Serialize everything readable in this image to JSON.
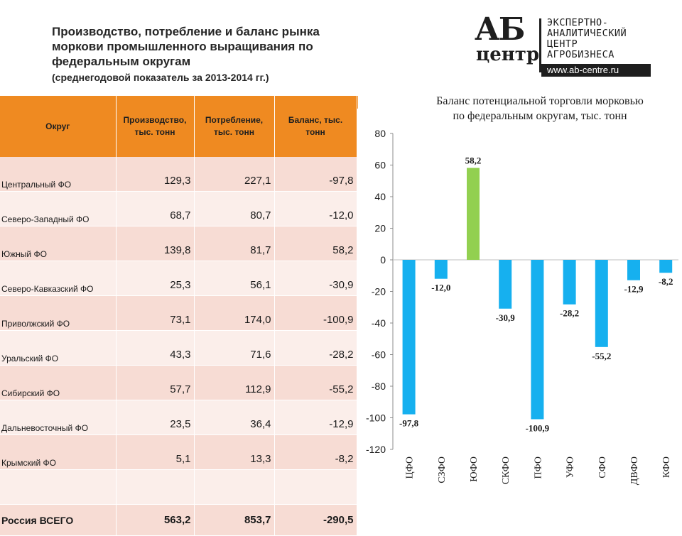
{
  "header": {
    "title": "Производство, потребление и баланс рынка моркови промышленного выращивания по федеральным округам",
    "subtitle": "(среднегодовой показатель за 2013-2014 гг.)"
  },
  "logo": {
    "mark_top": "АБ",
    "mark_bottom": "центр",
    "line1": "ЭКСПЕРТНО-",
    "line2": "АНАЛИТИЧЕСКИЙ",
    "line3": "ЦЕНТР",
    "line4": "АГРОБИЗНЕСА",
    "url": "www.ab-centre.ru"
  },
  "table": {
    "headers": [
      "Округ",
      "Производство, тыс. тонн",
      "Потребление, тыс. тонн",
      "Баланс, тыс. тонн"
    ],
    "rows": [
      {
        "name": "Центральный ФО",
        "production": "129,3",
        "consumption": "227,1",
        "balance": "-97,8"
      },
      {
        "name": "Северо-Западный ФО",
        "production": "68,7",
        "consumption": "80,7",
        "balance": "-12,0"
      },
      {
        "name": "Южный ФО",
        "production": "139,8",
        "consumption": "81,7",
        "balance": "58,2"
      },
      {
        "name": "Северо-Кавказский ФО",
        "production": "25,3",
        "consumption": "56,1",
        "balance": "-30,9"
      },
      {
        "name": "Приволжский ФО",
        "production": "73,1",
        "consumption": "174,0",
        "balance": "-100,9"
      },
      {
        "name": "Уральский ФО",
        "production": "43,3",
        "consumption": "71,6",
        "balance": "-28,2"
      },
      {
        "name": "Сибирский ФО",
        "production": "57,7",
        "consumption": "112,9",
        "balance": "-55,2"
      },
      {
        "name": "Дальневосточный ФО",
        "production": "23,5",
        "consumption": "36,4",
        "balance": "-12,9"
      },
      {
        "name": "Крымский ФО",
        "production": "5,1",
        "consumption": "13,3",
        "balance": "-8,2"
      }
    ],
    "total": {
      "name": "Россия ВСЕГО",
      "production": "563,2",
      "consumption": "853,7",
      "balance": "-290,5"
    }
  },
  "chart_data": {
    "type": "bar",
    "title": "Баланс потенциальной торговли морковью по федеральным округам, тыс. тонн",
    "title_line1": "Баланс потенциальной торговли морковью",
    "title_line2": "по федеральным округам, тыс. тонн",
    "categories": [
      "ЦФО",
      "СЗФО",
      "ЮФО",
      "СКФО",
      "ПФО",
      "УФО",
      "СФО",
      "ДВФО",
      "КФО"
    ],
    "values": [
      -97.8,
      -12.0,
      58.2,
      -30.9,
      -100.9,
      -28.2,
      -55.2,
      -12.9,
      -8.2
    ],
    "value_labels": [
      "-97,8",
      "-12,0",
      "58,2",
      "-30,9",
      "-100,9",
      "-28,2",
      "-55,2",
      "-12,9",
      "-8,2"
    ],
    "ylim": [
      -120,
      80
    ],
    "yticks": [
      80,
      60,
      40,
      20,
      0,
      -20,
      -40,
      -60,
      -80,
      -100,
      -120
    ],
    "grid": false,
    "colors": {
      "negative": "#16b0ef",
      "positive": "#92d050"
    }
  }
}
